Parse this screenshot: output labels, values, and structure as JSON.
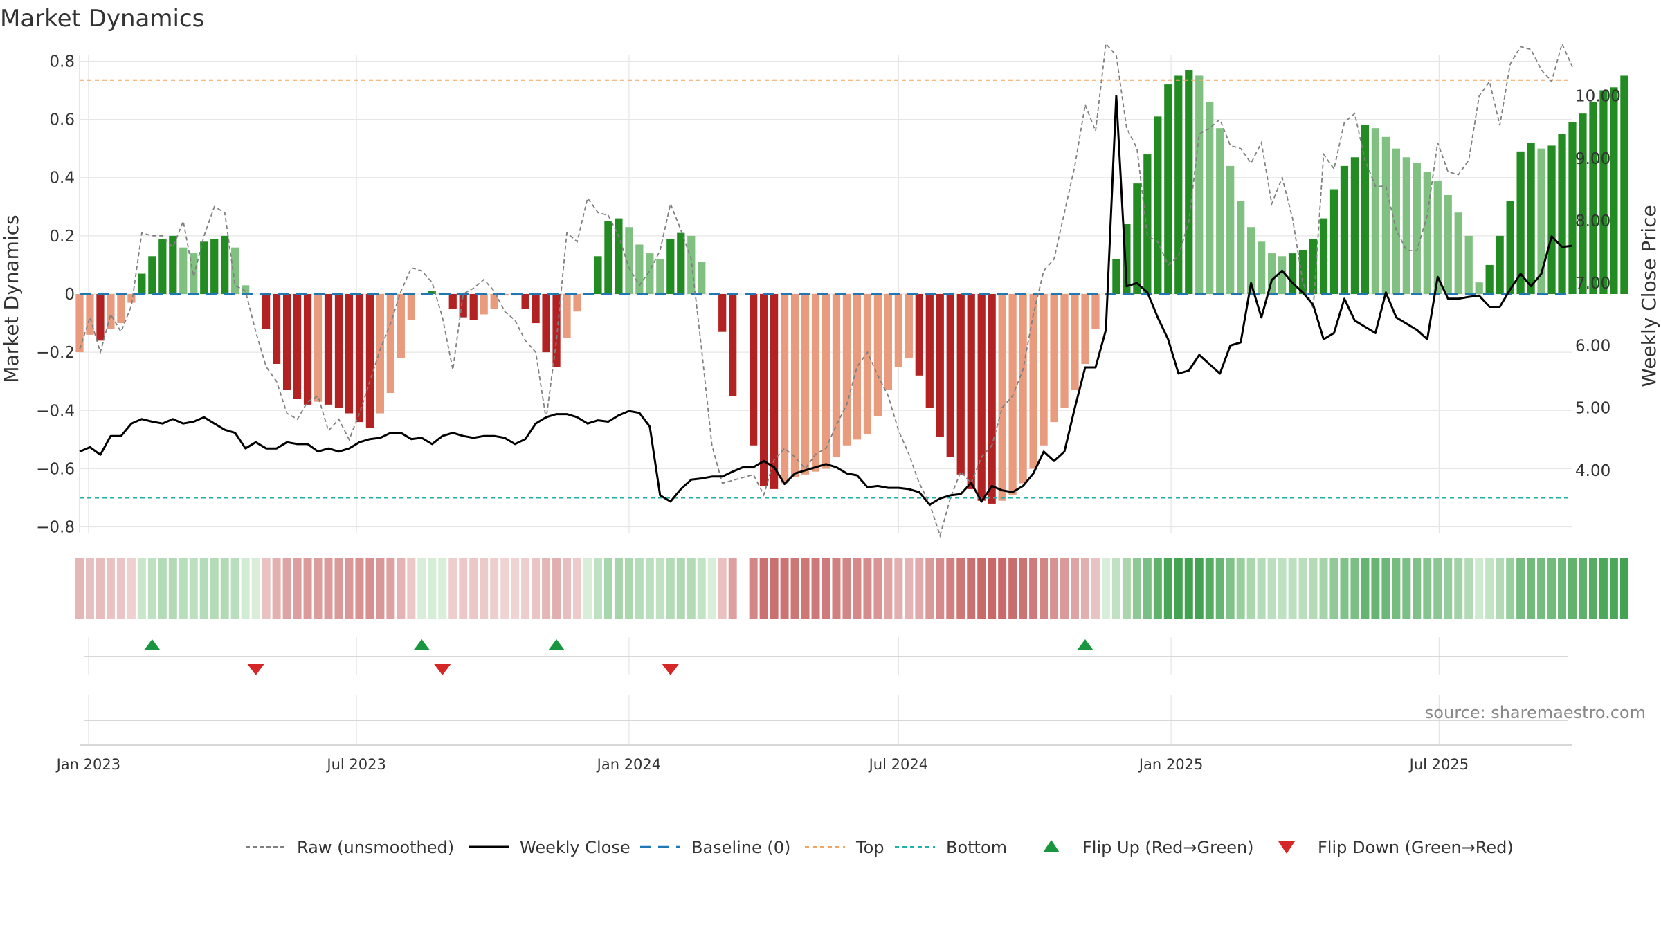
{
  "chart_data": {
    "type": "bar",
    "title": "Market Dynamics",
    "ylabel_left": "Market Dynamics",
    "ylabel_right": "Weekly Close Price",
    "source": "source: sharemaestro.com",
    "left_axis": {
      "ylim": [
        -0.82,
        0.82
      ],
      "ticks": [
        "0.8",
        "0.6",
        "0.4",
        "0.2",
        "0",
        "−0.2",
        "−0.4",
        "−0.6",
        "−0.8"
      ],
      "tick_values": [
        0.8,
        0.6,
        0.4,
        0.2,
        0,
        -0.2,
        -0.4,
        -0.6,
        -0.8
      ]
    },
    "right_axis": {
      "ylim": [
        3.0,
        10.65
      ],
      "ticks": [
        "10.00",
        "9.00",
        "8.00",
        "7.00",
        "6.00",
        "5.00",
        "4.00"
      ],
      "tick_values": [
        10,
        9,
        8,
        7,
        6,
        5,
        4
      ]
    },
    "x_axis": {
      "start": "2022-12-26",
      "end": "2025-09-29",
      "ticks": [
        {
          "label": "Jan 2023",
          "date": "2023-01-01"
        },
        {
          "label": "Jul 2023",
          "date": "2023-07-01"
        },
        {
          "label": "Jan 2024",
          "date": "2024-01-01"
        },
        {
          "label": "Jul 2024",
          "date": "2024-07-01"
        },
        {
          "label": "Jan 2025",
          "date": "2025-01-01"
        },
        {
          "label": "Jul 2025",
          "date": "2025-07-01"
        }
      ]
    },
    "reference_lines": {
      "top": 0.735,
      "bottom": -0.7,
      "baseline": 0
    },
    "bars": {
      "start": "2022-12-26",
      "interval_days": 7,
      "values": [
        -0.2,
        -0.14,
        -0.16,
        -0.12,
        -0.1,
        -0.03,
        0.07,
        0.13,
        0.19,
        0.2,
        0.16,
        0.14,
        0.18,
        0.19,
        0.2,
        0.16,
        0.03,
        0,
        -0.12,
        -0.24,
        -0.33,
        -0.36,
        -0.38,
        -0.37,
        -0.38,
        -0.39,
        -0.41,
        -0.44,
        -0.46,
        -0.41,
        -0.34,
        -0.22,
        -0.09,
        0,
        0.01,
        0.005,
        -0.05,
        -0.08,
        -0.09,
        -0.07,
        -0.05,
        -0.005,
        -0.005,
        -0.05,
        -0.1,
        -0.2,
        -0.25,
        -0.15,
        -0.06,
        0,
        0.13,
        0.25,
        0.26,
        0.23,
        0.17,
        0.14,
        0.12,
        0.19,
        0.21,
        0.2,
        0.11,
        0,
        -0.13,
        -0.35,
        0,
        -0.52,
        -0.66,
        -0.67,
        -0.65,
        -0.63,
        -0.62,
        -0.61,
        -0.6,
        -0.56,
        -0.52,
        -0.5,
        -0.48,
        -0.42,
        -0.33,
        -0.25,
        -0.22,
        -0.28,
        -0.39,
        -0.49,
        -0.56,
        -0.62,
        -0.67,
        -0.71,
        -0.72,
        -0.71,
        -0.69,
        -0.65,
        -0.6,
        -0.52,
        -0.44,
        -0.39,
        -0.33,
        -0.24,
        -0.12,
        0,
        0.12,
        0.24,
        0.38,
        0.48,
        0.61,
        0.72,
        0.75,
        0.77,
        0.75,
        0.66,
        0.57,
        0.44,
        0.32,
        0.23,
        0.18,
        0.14,
        0.13,
        0.14,
        0.15,
        0.19,
        0.26,
        0.36,
        0.44,
        0.47,
        0.58,
        0.57,
        0.54,
        0.5,
        0.47,
        0.45,
        0.42,
        0.39,
        0.34,
        0.28,
        0.2,
        0.04,
        0.1,
        0.2,
        0.32,
        0.49,
        0.52,
        0.5,
        0.51,
        0.55,
        0.59,
        0.62,
        0.66,
        0.7,
        0.71,
        0.75
      ]
    },
    "raw_unsmoothed": [
      -0.19,
      -0.08,
      -0.2,
      -0.07,
      -0.13,
      -0.04,
      0.21,
      0.2,
      0.2,
      0.16,
      0.25,
      0.06,
      0.2,
      0.3,
      0.28,
      0.03,
      0.01,
      -0.13,
      -0.25,
      -0.3,
      -0.41,
      -0.43,
      -0.37,
      -0.35,
      -0.47,
      -0.43,
      -0.5,
      -0.41,
      -0.3,
      -0.19,
      -0.1,
      0.01,
      0.09,
      0.08,
      0.04,
      -0.08,
      -0.26,
      0.0,
      0.02,
      0.05,
      0.01,
      -0.06,
      -0.09,
      -0.16,
      -0.2,
      -0.43,
      -0.16,
      0.21,
      0.18,
      0.33,
      0.28,
      0.27,
      0.2,
      0.09,
      0.03,
      0.08,
      0.15,
      0.31,
      0.22,
      0.12,
      -0.19,
      -0.52,
      -0.65,
      -0.64,
      -0.63,
      -0.62,
      -0.69,
      -0.57,
      -0.53,
      -0.56,
      -0.6,
      -0.55,
      -0.53,
      -0.45,
      -0.38,
      -0.25,
      -0.2,
      -0.28,
      -0.35,
      -0.47,
      -0.55,
      -0.65,
      -0.72,
      -0.83,
      -0.7,
      -0.61,
      -0.65,
      -0.56,
      -0.52,
      -0.39,
      -0.35,
      -0.26,
      -0.07,
      0.08,
      0.12,
      0.28,
      0.44,
      0.65,
      0.56,
      0.86,
      0.82,
      0.57,
      0.5,
      0.2,
      0.18,
      0.1,
      0.13,
      0.25,
      0.55,
      0.57,
      0.6,
      0.51,
      0.5,
      0.45,
      0.52,
      0.31,
      0.4,
      0.26,
      0.04,
      -0.05,
      0.48,
      0.43,
      0.59,
      0.62,
      0.46,
      0.37,
      0.37,
      0.22,
      0.15,
      0.15,
      0.27,
      0.52,
      0.42,
      0.41,
      0.46,
      0.68,
      0.73,
      0.58,
      0.79,
      0.85,
      0.84,
      0.77,
      0.73,
      0.86,
      0.78
    ],
    "raw_x_start": "2022-12-26",
    "raw_interval_days": 7,
    "weekly_close": [
      4.3,
      4.37,
      4.25,
      4.55,
      4.55,
      4.75,
      4.82,
      4.78,
      4.75,
      4.82,
      4.75,
      4.78,
      4.85,
      4.75,
      4.65,
      4.6,
      4.35,
      4.45,
      4.35,
      4.35,
      4.45,
      4.42,
      4.42,
      4.3,
      4.35,
      4.3,
      4.35,
      4.45,
      4.5,
      4.52,
      4.6,
      4.6,
      4.5,
      4.52,
      4.42,
      4.55,
      4.6,
      4.55,
      4.52,
      4.55,
      4.55,
      4.52,
      4.42,
      4.5,
      4.75,
      4.85,
      4.9,
      4.9,
      4.85,
      4.75,
      4.8,
      4.78,
      4.88,
      4.95,
      4.92,
      4.7,
      3.6,
      3.5,
      3.7,
      3.85,
      3.87,
      3.9,
      3.9,
      3.98,
      4.05,
      4.05,
      4.15,
      4.05,
      3.78,
      3.95,
      4.0,
      4.05,
      4.1,
      4.05,
      3.95,
      3.92,
      3.73,
      3.75,
      3.72,
      3.72,
      3.7,
      3.65,
      3.45,
      3.55,
      3.6,
      3.62,
      3.8,
      3.5,
      3.75,
      3.68,
      3.65,
      3.75,
      3.95,
      4.3,
      4.15,
      4.3,
      5.0,
      5.65,
      5.65,
      6.25,
      10.0,
      6.95,
      7.0,
      6.85,
      6.45,
      6.1,
      5.55,
      5.6,
      5.85,
      5.7,
      5.55,
      6.0,
      6.05,
      7.0,
      6.45,
      7.05,
      7.2,
      7.0,
      6.85,
      6.65,
      6.1,
      6.2,
      6.75,
      6.4,
      6.3,
      6.2,
      6.85,
      6.45,
      6.35,
      6.25,
      6.1,
      7.1,
      6.75,
      6.75,
      6.78,
      6.8,
      6.62,
      6.62,
      6.9,
      7.15,
      6.95,
      7.15,
      7.75,
      7.58,
      7.6
    ],
    "state_strip": {
      "start": "2022-12-26",
      "interval_days": 7,
      "gap_index": 64,
      "state_values": [
        -0.2,
        -0.14,
        -0.16,
        -0.12,
        -0.1,
        -0.03,
        0.07,
        0.13,
        0.19,
        0.2,
        0.16,
        0.14,
        0.18,
        0.19,
        0.2,
        0.16,
        0.03,
        0,
        -0.12,
        -0.24,
        -0.33,
        -0.36,
        -0.38,
        -0.37,
        -0.38,
        -0.39,
        -0.41,
        -0.44,
        -0.46,
        -0.41,
        -0.34,
        -0.22,
        -0.09,
        0,
        0.01,
        0.005,
        -0.05,
        -0.08,
        -0.09,
        -0.07,
        -0.05,
        -0.005,
        -0.005,
        -0.05,
        -0.1,
        -0.2,
        -0.25,
        -0.15,
        -0.06,
        0,
        0.13,
        0.25,
        0.26,
        0.23,
        0.17,
        0.14,
        0.12,
        0.19,
        0.21,
        0.2,
        0.11,
        0,
        -0.13,
        -0.35,
        0,
        -0.52,
        -0.66,
        -0.67,
        -0.65,
        -0.63,
        -0.62,
        -0.61,
        -0.6,
        -0.56,
        -0.52,
        -0.5,
        -0.48,
        -0.42,
        -0.33,
        -0.25,
        -0.22,
        -0.28,
        -0.39,
        -0.49,
        -0.56,
        -0.62,
        -0.67,
        -0.71,
        -0.72,
        -0.71,
        -0.69,
        -0.65,
        -0.6,
        -0.52,
        -0.44,
        -0.39,
        -0.33,
        -0.24,
        -0.12,
        0,
        0.12,
        0.24,
        0.38,
        0.48,
        0.61,
        0.72,
        0.75,
        0.77,
        0.75,
        0.66,
        0.57,
        0.44,
        0.32,
        0.23,
        0.18,
        0.14,
        0.13,
        0.14,
        0.15,
        0.19,
        0.26,
        0.36,
        0.44,
        0.47,
        0.58,
        0.57,
        0.54,
        0.5,
        0.47,
        0.45,
        0.42,
        0.39,
        0.34,
        0.28,
        0.2,
        0.04,
        0.1,
        0.2,
        0.32,
        0.49,
        0.52,
        0.5,
        0.51,
        0.55,
        0.59,
        0.62,
        0.66,
        0.7,
        0.71,
        0.75
      ]
    },
    "flips": [
      {
        "type": "up",
        "date": "2023-02-13"
      },
      {
        "type": "down",
        "date": "2023-04-24"
      },
      {
        "type": "up",
        "date": "2023-08-14"
      },
      {
        "type": "down",
        "date": "2023-08-28"
      },
      {
        "type": "up",
        "date": "2023-11-13"
      },
      {
        "type": "down",
        "date": "2024-01-29"
      },
      {
        "type": "up",
        "date": "2024-11-04"
      }
    ],
    "legend": [
      {
        "label": "Raw (unsmoothed)",
        "style": "raw"
      },
      {
        "label": "Weekly Close",
        "style": "close"
      },
      {
        "label": "Baseline (0)",
        "style": "baseline"
      },
      {
        "label": "Top",
        "style": "top"
      },
      {
        "label": "Bottom",
        "style": "bottom"
      },
      {
        "label": "Flip Up (Red→Green)",
        "style": "flipup"
      },
      {
        "label": "Flip Down (Green→Red)",
        "style": "flipdown"
      }
    ],
    "colors": {
      "pos_strong": "#228b22",
      "pos_light": "#80c080",
      "neg_strong": "#b22222",
      "neg_light": "#e99b7e",
      "close": "#000000",
      "raw": "#808080",
      "baseline": "#1f77b4",
      "top": "#f4a460",
      "bottom": "#20b2aa",
      "flip_up": "#1a9641",
      "flip_down": "#d62728"
    },
    "grid": true,
    "legend_position": "bottom"
  }
}
